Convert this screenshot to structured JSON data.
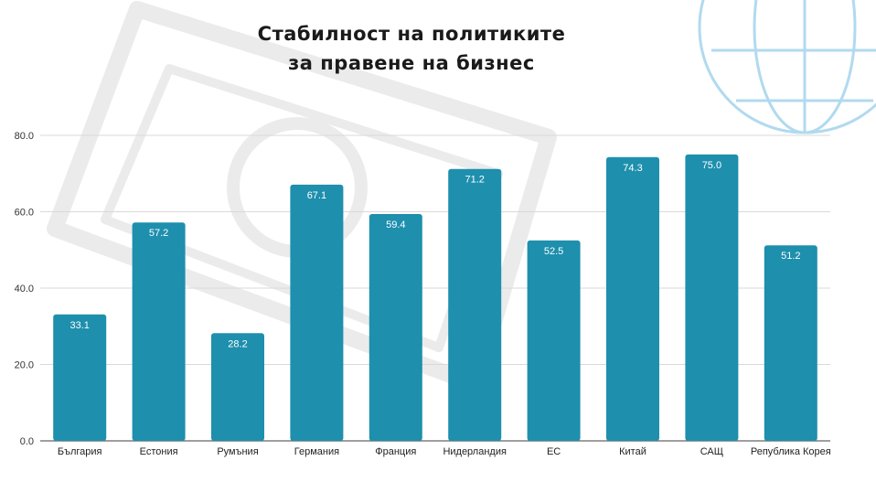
{
  "chart_data": {
    "type": "bar",
    "title_lines": [
      "Стабилност на политиките",
      "за правене на бизнес"
    ],
    "categories": [
      "България",
      "Естония",
      "Румъния",
      "Германия",
      "Франция",
      "Нидерландия",
      "ЕС",
      "Китай",
      "САЩ",
      "Република Корея"
    ],
    "values": [
      33.1,
      57.2,
      28.2,
      67.1,
      59.4,
      71.2,
      52.5,
      74.3,
      75.0,
      51.2
    ],
    "value_labels": [
      "33.1",
      "57.2",
      "28.2",
      "67.1",
      "59.4",
      "71.2",
      "52.5",
      "74.3",
      "75.0",
      "51.2"
    ],
    "y_ticks": [
      "0.0",
      "20.0",
      "40.0",
      "60.0",
      "80.0"
    ],
    "ylim": [
      0,
      80
    ],
    "grid": true,
    "legend": "none",
    "bar_color": "#1e8fad",
    "label_color": "#ffffff"
  }
}
